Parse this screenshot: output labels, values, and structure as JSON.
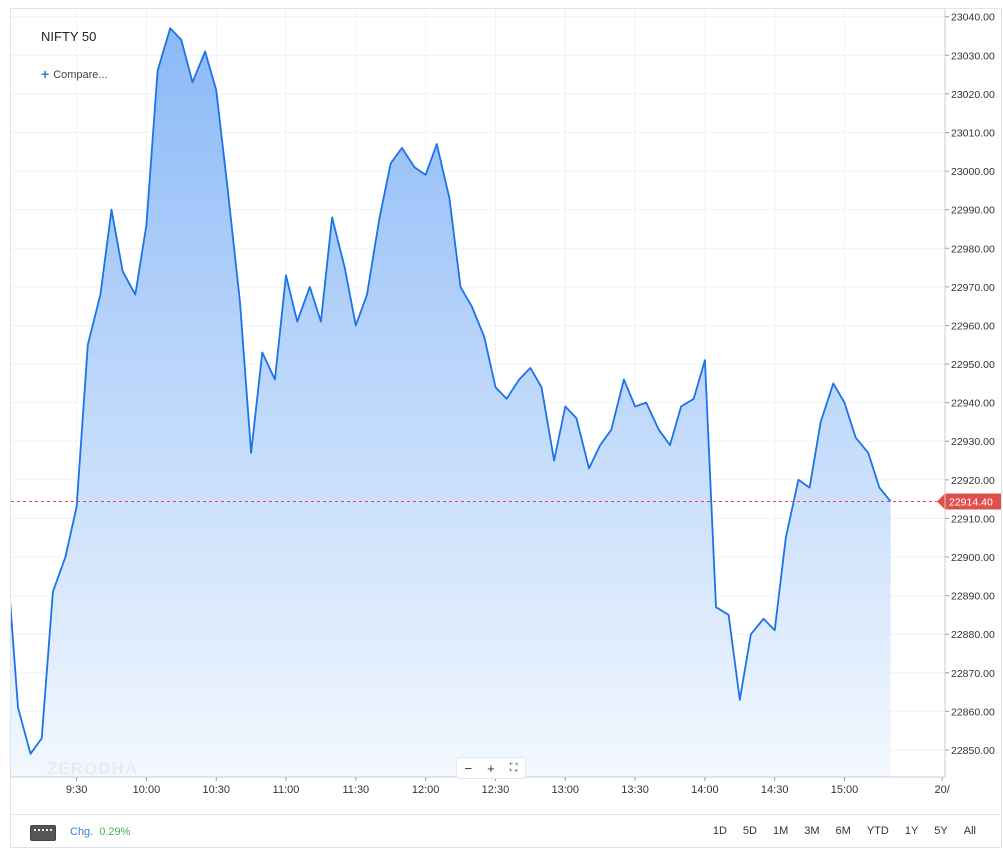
{
  "symbol": "NIFTY 50",
  "compare_label": "Compare...",
  "watermark": "ZERODHA",
  "zoom": {
    "minus": "−",
    "plus": "+",
    "fit": "⛶"
  },
  "footer": {
    "chg_label": "Chg.",
    "chg_value": "0.29%"
  },
  "ranges": [
    "1D",
    "5D",
    "1M",
    "3M",
    "6M",
    "YTD",
    "1Y",
    "5Y",
    "All"
  ],
  "colors": {
    "line": "#1a73e8",
    "fill_top": "#8bb9f7",
    "fill_bottom": "#f3f8fe",
    "price_tag": "#e0504a"
  },
  "chart_data": {
    "type": "area",
    "title": "NIFTY 50",
    "xlabel": "",
    "ylabel": "",
    "x_ticks": [
      "9:30",
      "10:00",
      "10:30",
      "11:00",
      "11:30",
      "12:00",
      "12:30",
      "13:00",
      "13:30",
      "14:00",
      "14:30",
      "15:00",
      "20/"
    ],
    "y_ticks": [
      "23040.00",
      "23030.00",
      "23020.00",
      "23010.00",
      "23000.00",
      "22990.00",
      "22980.00",
      "22970.00",
      "22960.00",
      "22950.00",
      "22940.00",
      "22930.00",
      "22920.00",
      "22910.00",
      "22900.00",
      "22890.00",
      "22880.00",
      "22870.00",
      "22860.00",
      "22850.00"
    ],
    "xlim": [
      9.03,
      15.72
    ],
    "ylim": [
      22843,
      23042
    ],
    "last_price": 22914.4,
    "last_price_label": "22914.40",
    "x": [
      9.0,
      9.08,
      9.17,
      9.25,
      9.33,
      9.42,
      9.5,
      9.58,
      9.67,
      9.75,
      9.83,
      9.92,
      10.0,
      10.08,
      10.17,
      10.25,
      10.33,
      10.42,
      10.5,
      10.58,
      10.67,
      10.75,
      10.83,
      10.92,
      11.0,
      11.08,
      11.17,
      11.25,
      11.33,
      11.42,
      11.5,
      11.58,
      11.67,
      11.75,
      11.83,
      11.92,
      12.0,
      12.08,
      12.17,
      12.25,
      12.33,
      12.42,
      12.5,
      12.58,
      12.67,
      12.75,
      12.83,
      12.92,
      13.0,
      13.08,
      13.17,
      13.25,
      13.33,
      13.42,
      13.5,
      13.58,
      13.67,
      13.75,
      13.83,
      13.92,
      14.0,
      14.08,
      14.17,
      14.25,
      14.33,
      14.42,
      14.5,
      14.58,
      14.67,
      14.75,
      14.83,
      14.92,
      15.0,
      15.08,
      15.17,
      15.25,
      15.33
    ],
    "y": [
      22900,
      22861,
      22849,
      22853,
      22891,
      22900,
      22913,
      22955,
      22968,
      22990,
      22974,
      22968,
      22986,
      23026,
      23037,
      23034,
      23023,
      23031,
      23021,
      22996,
      22966,
      22927,
      22953,
      22946,
      22973,
      22961,
      22970,
      22961,
      22988,
      22975,
      22960,
      22968,
      22988,
      23002,
      23006,
      23001,
      22999,
      23007,
      22993,
      22970,
      22965,
      22957,
      22944,
      22941,
      22946,
      22949,
      22944,
      22925,
      22939,
      22936,
      22923,
      22929,
      22933,
      22946,
      22939,
      22940,
      22933,
      22929,
      22939,
      22941,
      22951,
      22887,
      22885,
      22863,
      22880,
      22884,
      22881,
      22905,
      22920,
      22918,
      22935,
      22945,
      22940,
      22931,
      22927,
      22918,
      22914.4
    ]
  }
}
